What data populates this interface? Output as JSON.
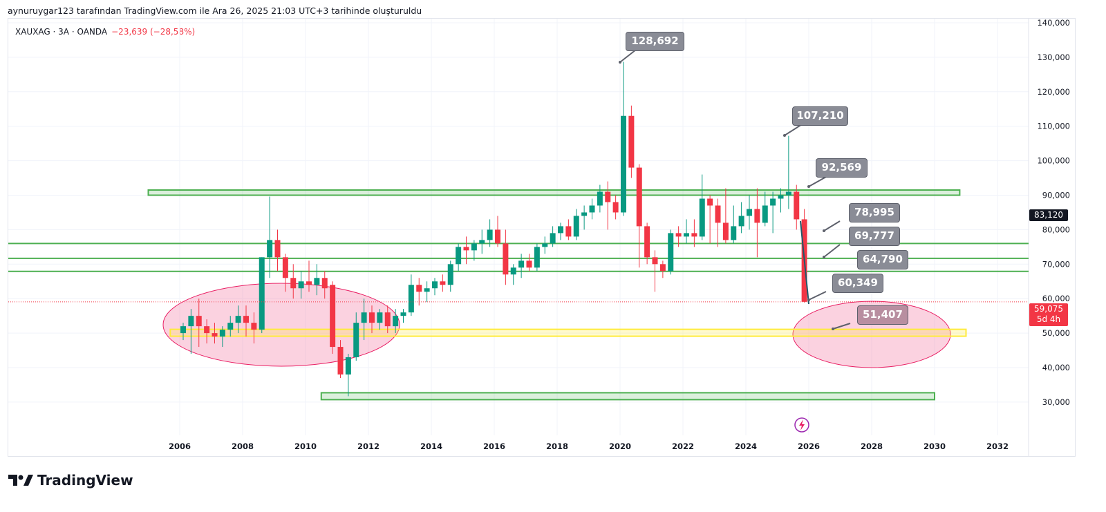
{
  "caption": "aynuruygar123 tarafından TradingView.com ile Ara 26, 2025 21:03 UTC+3 tarihinde oluşturuldu",
  "legend": {
    "symbol": "XAUXAG · 3A · OANDA",
    "change": "−23,639 (−28,58%)"
  },
  "price_tags": {
    "high_marker": "83,120",
    "last_price": "59,075",
    "countdown": "5d 4h"
  },
  "callouts": [
    "128,692",
    "107,210",
    "92,569",
    "78,995",
    "69,777",
    "64,790",
    "60,349",
    "51,407"
  ],
  "brand": "TradingView",
  "colors": {
    "up": "#089981",
    "down": "#f23645",
    "zone_green": "#4caf50",
    "zone_yellow": "#ffeb3b",
    "ellipse": "#f48fb1"
  },
  "chart_data": {
    "type": "candlestick",
    "title": "XAUXAG · 3A · OANDA",
    "interval": "3 months",
    "ylim": [
      22000,
      142000
    ],
    "yticks": [
      30000,
      40000,
      50000,
      60000,
      70000,
      80000,
      90000,
      100000,
      110000,
      120000,
      130000,
      140000
    ],
    "ytick_labels": [
      "30,000",
      "40,000",
      "50,000",
      "60,000",
      "70,000",
      "80,000",
      "90,000",
      "100,000",
      "110,000",
      "120,000",
      "130,000",
      "140,000"
    ],
    "xticks": [
      "2006",
      "2008",
      "2010",
      "2012",
      "2014",
      "2016",
      "2018",
      "2020",
      "2022",
      "2024",
      "2026",
      "2028",
      "2030",
      "2032"
    ],
    "start_year": 2006,
    "candles_ohlc_thousands": [
      [
        50,
        53,
        48,
        52
      ],
      [
        52,
        57,
        44,
        55
      ],
      [
        55,
        60,
        46,
        52
      ],
      [
        52,
        54,
        47,
        50
      ],
      [
        50,
        53,
        47,
        49
      ],
      [
        49,
        52,
        46,
        51
      ],
      [
        51,
        55,
        49,
        53
      ],
      [
        53,
        58,
        50,
        55
      ],
      [
        55,
        58,
        49,
        53
      ],
      [
        53,
        56,
        47,
        51
      ],
      [
        51,
        72,
        50,
        72
      ],
      [
        72,
        89.6,
        66,
        77
      ],
      [
        77,
        80,
        68,
        72
      ],
      [
        72,
        73,
        62,
        66
      ],
      [
        66,
        70,
        60,
        63
      ],
      [
        63,
        68,
        60,
        65
      ],
      [
        65,
        71,
        62,
        64
      ],
      [
        64,
        70,
        61,
        66
      ],
      [
        66,
        68,
        60,
        63
      ],
      [
        64,
        65,
        44,
        46
      ],
      [
        46,
        48,
        37,
        38
      ],
      [
        38,
        44,
        31.7,
        43
      ],
      [
        43,
        56,
        42,
        53
      ],
      [
        53,
        60,
        48,
        56
      ],
      [
        56,
        58,
        50,
        53
      ],
      [
        53,
        57,
        51,
        56
      ],
      [
        56,
        58,
        50,
        52
      ],
      [
        52,
        57,
        50,
        55
      ],
      [
        55,
        57,
        53,
        56
      ],
      [
        56,
        67,
        55,
        64
      ],
      [
        64,
        66,
        58,
        62
      ],
      [
        62,
        65,
        59,
        63
      ],
      [
        63,
        66,
        61,
        65
      ],
      [
        65,
        67,
        62,
        64
      ],
      [
        64,
        71,
        62,
        70
      ],
      [
        70,
        76,
        68,
        75
      ],
      [
        75,
        78,
        70,
        74
      ],
      [
        74,
        77,
        71,
        76
      ],
      [
        76,
        80,
        73,
        77
      ],
      [
        77,
        83,
        75,
        80
      ],
      [
        80,
        84,
        75,
        76
      ],
      [
        76,
        80,
        64,
        67
      ],
      [
        67,
        70,
        64,
        69
      ],
      [
        69,
        73,
        66,
        71
      ],
      [
        71,
        73,
        68,
        69
      ],
      [
        69,
        76,
        68,
        75
      ],
      [
        75,
        78,
        73,
        76
      ],
      [
        76,
        81,
        75,
        79
      ],
      [
        79,
        82,
        77,
        81
      ],
      [
        81,
        83,
        77,
        78
      ],
      [
        78,
        86,
        77,
        84
      ],
      [
        84,
        87,
        80,
        85
      ],
      [
        85,
        89,
        83,
        87
      ],
      [
        87,
        93,
        85,
        91
      ],
      [
        91,
        94,
        80,
        88
      ],
      [
        88,
        90,
        83,
        85
      ],
      [
        85,
        128.692,
        84,
        113
      ],
      [
        113,
        116,
        95,
        98
      ],
      [
        98,
        99,
        69,
        81
      ],
      [
        81,
        82,
        70,
        72
      ],
      [
        72,
        74,
        62,
        70
      ],
      [
        70,
        71,
        66,
        68
      ],
      [
        68,
        80,
        67,
        79
      ],
      [
        79,
        81,
        75,
        78
      ],
      [
        78,
        83,
        76,
        79
      ],
      [
        79,
        83,
        75,
        78
      ],
      [
        78,
        96,
        77,
        89
      ],
      [
        89,
        90,
        76,
        87
      ],
      [
        87,
        89,
        75,
        82
      ],
      [
        82,
        92,
        76,
        77
      ],
      [
        77,
        87,
        76,
        81
      ],
      [
        81,
        88,
        79,
        84
      ],
      [
        84,
        90,
        80,
        86
      ],
      [
        86,
        92,
        72,
        82
      ],
      [
        82,
        91,
        81,
        87
      ],
      [
        87,
        91,
        79,
        89
      ],
      [
        89,
        92,
        85,
        90
      ],
      [
        90,
        107.21,
        86,
        91
      ],
      [
        91,
        93,
        80,
        83
      ],
      [
        83,
        86,
        58.9,
        59.075
      ]
    ],
    "zones": [
      {
        "kind": "rect",
        "color": "green",
        "from": 90000,
        "to": 91500,
        "start": 2005.0,
        "end": 2030.8
      },
      {
        "kind": "line",
        "color": "green",
        "value": 76000
      },
      {
        "kind": "line",
        "color": "green",
        "value": 71700
      },
      {
        "kind": "line",
        "color": "green",
        "value": 67900
      },
      {
        "kind": "rect",
        "color": "yellow",
        "from": 49100,
        "to": 51100,
        "start": 2005.7,
        "end": 2031.0
      },
      {
        "kind": "rect",
        "color": "green",
        "from": 30700,
        "to": 32700,
        "start": 2010.5,
        "end": 2030.0
      }
    ]
  }
}
